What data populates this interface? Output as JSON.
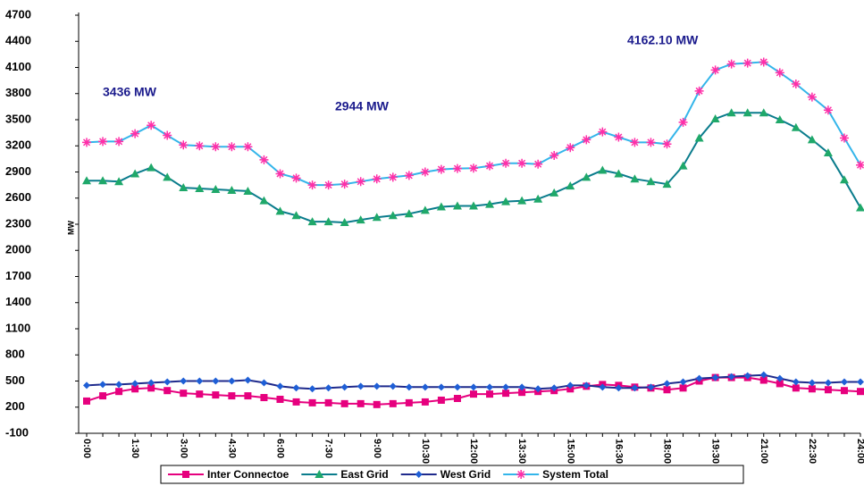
{
  "chart_data": {
    "type": "line",
    "y_label": "MW",
    "annotations": [
      "3436 MW",
      "2944 MW",
      "4162.10 MW"
    ],
    "categories": [
      "0:00",
      null,
      null,
      "1:30",
      null,
      null,
      "3:00",
      null,
      null,
      "4:30",
      null,
      null,
      "6:00",
      null,
      null,
      "7:30",
      null,
      null,
      "9:00",
      null,
      null,
      "10:30",
      null,
      null,
      "12:00",
      null,
      null,
      "13:30",
      null,
      null,
      "15:00",
      null,
      null,
      "16:30",
      null,
      null,
      "18:00",
      null,
      null,
      "19:30",
      null,
      null,
      "21:00",
      null,
      null,
      "22:30",
      null,
      null,
      "24:00"
    ],
    "series": [
      {
        "name": "Inter Connectoe",
        "color": "#e6007e",
        "marker": "square",
        "marker_color": "#e6007e",
        "values": [
          270,
          330,
          380,
          410,
          420,
          390,
          360,
          350,
          340,
          330,
          330,
          310,
          290,
          260,
          250,
          250,
          240,
          240,
          230,
          240,
          250,
          260,
          280,
          300,
          350,
          350,
          360,
          370,
          380,
          390,
          410,
          440,
          460,
          450,
          430,
          420,
          400,
          420,
          500,
          540,
          540,
          540,
          510,
          470,
          420,
          410,
          400,
          390,
          380
        ]
      },
      {
        "name": "East Grid",
        "color": "#0a7c8c",
        "marker": "triangle",
        "marker_color": "#1fa86a",
        "values": [
          2800,
          2800,
          2790,
          2880,
          2950,
          2840,
          2720,
          2710,
          2700,
          2690,
          2680,
          2570,
          2450,
          2400,
          2330,
          2330,
          2320,
          2350,
          2380,
          2400,
          2420,
          2460,
          2500,
          2510,
          2510,
          2530,
          2560,
          2570,
          2590,
          2660,
          2740,
          2840,
          2920,
          2880,
          2820,
          2790,
          2760,
          2970,
          3290,
          3510,
          3580,
          3580,
          3580,
          3500,
          3410,
          3270,
          3120,
          2810,
          2490
        ]
      },
      {
        "name": "West Grid",
        "color": "#1f2a8c",
        "marker": "diamond",
        "marker_color": "#1f5fd6",
        "values": [
          450,
          460,
          460,
          470,
          480,
          490,
          500,
          500,
          500,
          500,
          510,
          480,
          440,
          420,
          410,
          420,
          430,
          440,
          440,
          440,
          430,
          430,
          430,
          430,
          430,
          430,
          430,
          430,
          410,
          420,
          450,
          450,
          430,
          420,
          420,
          430,
          470,
          490,
          530,
          540,
          550,
          560,
          570,
          530,
          490,
          480,
          480,
          490,
          490
        ]
      },
      {
        "name": "System Total",
        "color": "#33b5ea",
        "marker": "asterisk",
        "marker_color": "#ff2fa8",
        "values": [
          3240,
          3250,
          3250,
          3340,
          3436,
          3320,
          3210,
          3200,
          3190,
          3190,
          3190,
          3040,
          2880,
          2830,
          2750,
          2750,
          2760,
          2790,
          2820,
          2840,
          2860,
          2900,
          2930,
          2940,
          2944,
          2970,
          3000,
          3000,
          2990,
          3090,
          3180,
          3270,
          3360,
          3300,
          3240,
          3240,
          3220,
          3470,
          3830,
          4070,
          4140,
          4150,
          4162.1,
          4040,
          3910,
          3760,
          3610,
          3290,
          2980
        ]
      }
    ],
    "ylim": [
      -100,
      4700
    ],
    "yticks": [
      -100,
      200,
      500,
      800,
      1100,
      1400,
      1700,
      2000,
      2300,
      2600,
      2900,
      3200,
      3500,
      3800,
      4100,
      4400,
      4700
    ],
    "grid": false,
    "legend": "bottom"
  }
}
